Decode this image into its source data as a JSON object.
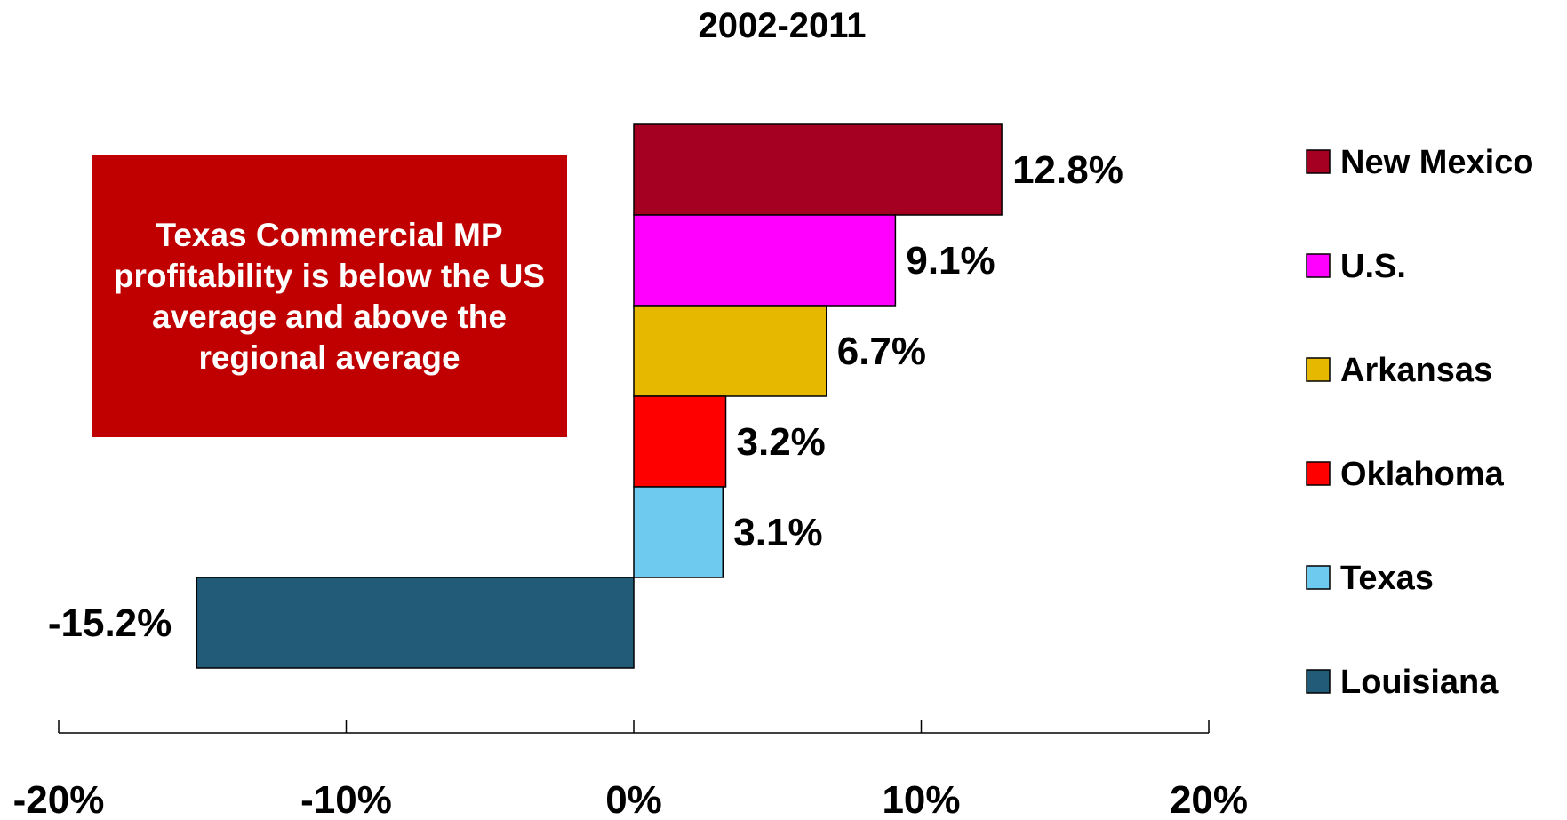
{
  "callout_text": "Texas Commercial MP profitability is below the US average and above the regional average",
  "chart_data": {
    "type": "bar",
    "orientation": "horizontal",
    "title": "2002-2011",
    "xlabel": "",
    "ylabel": "",
    "xlim": [
      -20,
      20
    ],
    "x_ticks": [
      "-20%",
      "-10%",
      "0%",
      "10%",
      "20%"
    ],
    "grid": false,
    "legend_position": "right",
    "series": [
      {
        "name": "New Mexico",
        "value": 12.8,
        "label": "12.8%",
        "color": "#a50021"
      },
      {
        "name": "U.S.",
        "value": 9.1,
        "label": "9.1%",
        "color": "#ff00ff"
      },
      {
        "name": "Arkansas",
        "value": 6.7,
        "label": "6.7%",
        "color": "#e6b800"
      },
      {
        "name": "Oklahoma",
        "value": 3.2,
        "label": "3.2%",
        "color": "#ff0000"
      },
      {
        "name": "Texas",
        "value": 3.1,
        "label": "3.1%",
        "color": "#6ecbef"
      },
      {
        "name": "Louisiana",
        "value": -15.2,
        "label": "-15.2%",
        "color": "#215b78"
      }
    ]
  }
}
